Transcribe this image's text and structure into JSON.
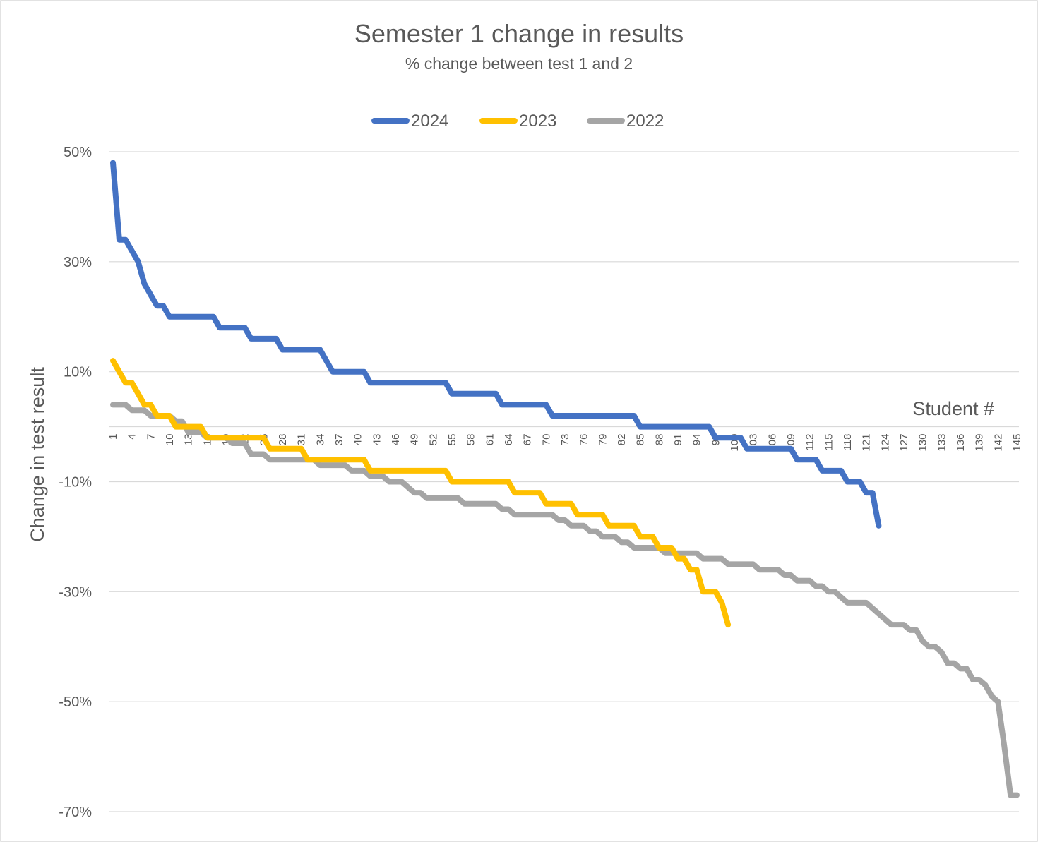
{
  "chart_data": {
    "type": "line",
    "title": "Semester 1 change in results",
    "subtitle": "% change between test 1 and 2",
    "xlabel": "Student #",
    "ylabel": "Change in test result",
    "ylim": [
      -70,
      50
    ],
    "yticks": [
      50,
      30,
      10,
      -10,
      -30,
      -50,
      -70
    ],
    "ytick_labels": [
      "50%",
      "30%",
      "10%",
      "-10%",
      "-30%",
      "-50%",
      "-70%"
    ],
    "x_range": [
      1,
      145
    ],
    "xtick_step": 3,
    "grid": true,
    "legend_position": "top",
    "series": [
      {
        "name": "2024",
        "color": "#4472C4",
        "values": [
          48,
          34,
          34,
          32,
          30,
          26,
          24,
          22,
          22,
          20,
          20,
          20,
          20,
          20,
          20,
          20,
          20,
          18,
          18,
          18,
          18,
          18,
          16,
          16,
          16,
          16,
          16,
          14,
          14,
          14,
          14,
          14,
          14,
          14,
          12,
          10,
          10,
          10,
          10,
          10,
          10,
          8,
          8,
          8,
          8,
          8,
          8,
          8,
          8,
          8,
          8,
          8,
          8,
          8,
          6,
          6,
          6,
          6,
          6,
          6,
          6,
          6,
          4,
          4,
          4,
          4,
          4,
          4,
          4,
          4,
          2,
          2,
          2,
          2,
          2,
          2,
          2,
          2,
          2,
          2,
          2,
          2,
          2,
          2,
          0,
          0,
          0,
          0,
          0,
          0,
          0,
          0,
          0,
          0,
          0,
          0,
          -2,
          -2,
          -2,
          -2,
          -2,
          -4,
          -4,
          -4,
          -4,
          -4,
          -4,
          -4,
          -4,
          -6,
          -6,
          -6,
          -6,
          -8,
          -8,
          -8,
          -8,
          -10,
          -10,
          -10,
          -12,
          -12,
          -18
        ]
      },
      {
        "name": "2023",
        "color": "#FFC000",
        "values": [
          12,
          10,
          8,
          8,
          6,
          4,
          4,
          2,
          2,
          2,
          0,
          0,
          0,
          0,
          0,
          -2,
          -2,
          -2,
          -2,
          -2,
          -2,
          -2,
          -2,
          -2,
          -2,
          -4,
          -4,
          -4,
          -4,
          -4,
          -4,
          -6,
          -6,
          -6,
          -6,
          -6,
          -6,
          -6,
          -6,
          -6,
          -6,
          -8,
          -8,
          -8,
          -8,
          -8,
          -8,
          -8,
          -8,
          -8,
          -8,
          -8,
          -8,
          -8,
          -10,
          -10,
          -10,
          -10,
          -10,
          -10,
          -10,
          -10,
          -10,
          -10,
          -12,
          -12,
          -12,
          -12,
          -12,
          -14,
          -14,
          -14,
          -14,
          -14,
          -16,
          -16,
          -16,
          -16,
          -16,
          -18,
          -18,
          -18,
          -18,
          -18,
          -20,
          -20,
          -20,
          -22,
          -22,
          -22,
          -24,
          -24,
          -26,
          -26,
          -30,
          -30,
          -30,
          -32,
          -36
        ]
      },
      {
        "name": "2022",
        "color": "#A5A5A5",
        "values": [
          4,
          4,
          4,
          3,
          3,
          3,
          2,
          2,
          2,
          2,
          1,
          1,
          -1,
          -1,
          -1,
          -2,
          -2,
          -2,
          -2,
          -3,
          -3,
          -3,
          -5,
          -5,
          -5,
          -6,
          -6,
          -6,
          -6,
          -6,
          -6,
          -6,
          -6,
          -7,
          -7,
          -7,
          -7,
          -7,
          -8,
          -8,
          -8,
          -9,
          -9,
          -9,
          -10,
          -10,
          -10,
          -11,
          -12,
          -12,
          -13,
          -13,
          -13,
          -13,
          -13,
          -13,
          -14,
          -14,
          -14,
          -14,
          -14,
          -14,
          -15,
          -15,
          -16,
          -16,
          -16,
          -16,
          -16,
          -16,
          -16,
          -17,
          -17,
          -18,
          -18,
          -18,
          -19,
          -19,
          -20,
          -20,
          -20,
          -21,
          -21,
          -22,
          -22,
          -22,
          -22,
          -22,
          -23,
          -23,
          -23,
          -23,
          -23,
          -23,
          -24,
          -24,
          -24,
          -24,
          -25,
          -25,
          -25,
          -25,
          -25,
          -26,
          -26,
          -26,
          -26,
          -27,
          -27,
          -28,
          -28,
          -28,
          -29,
          -29,
          -30,
          -30,
          -31,
          -32,
          -32,
          -32,
          -32,
          -33,
          -34,
          -35,
          -36,
          -36,
          -36,
          -37,
          -37,
          -39,
          -40,
          -40,
          -41,
          -43,
          -43,
          -44,
          -44,
          -46,
          -46,
          -47,
          -49,
          -50,
          -58,
          -67,
          -67
        ]
      }
    ]
  }
}
